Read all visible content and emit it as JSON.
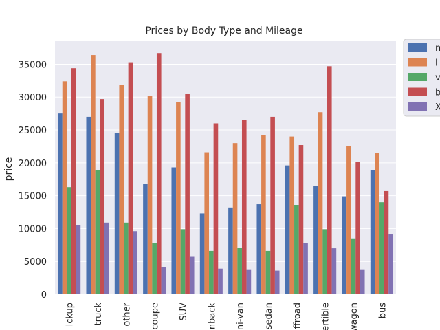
{
  "chart_data": {
    "type": "bar",
    "title": "Prices by Body Type and Mileage",
    "xlabel": "",
    "ylabel": "price",
    "ylim": [
      0,
      38500
    ],
    "yticks": [
      0,
      5000,
      10000,
      15000,
      20000,
      25000,
      30000,
      35000
    ],
    "grid": true,
    "legend_position": "outside right, top",
    "categories": [
      "pickup",
      "truck",
      "other",
      "coupe",
      "SUV",
      "hatchback",
      "mini-van",
      "sedan",
      "offroad",
      "convertible",
      "wagon",
      "bus"
    ],
    "category_labels_visible": [
      "ickup",
      "truck",
      "other",
      "coupe",
      "SUV",
      "nback",
      "ni-van",
      "sedan",
      "ffroad",
      "ertible",
      "wagon",
      "bus"
    ],
    "series": [
      {
        "name": "",
        "legend_label_visible": "n",
        "color": "#4c72b0",
        "values": [
          27500,
          27000,
          24500,
          16800,
          19300,
          12300,
          13200,
          13700,
          19600,
          16500,
          14900,
          18900
        ]
      },
      {
        "name": "",
        "legend_label_visible": "l",
        "color": "#dd8452",
        "values": [
          32400,
          36400,
          31900,
          30200,
          29200,
          21600,
          23000,
          24200,
          24000,
          27700,
          22500,
          21500
        ]
      },
      {
        "name": "",
        "legend_label_visible": "v",
        "color": "#55a868",
        "values": [
          16300,
          18900,
          10900,
          7800,
          9900,
          6600,
          7100,
          6600,
          13600,
          9900,
          8500,
          14000
        ]
      },
      {
        "name": "",
        "legend_label_visible": "b",
        "color": "#c44e52",
        "values": [
          34400,
          29700,
          35300,
          36700,
          30500,
          26000,
          26500,
          27000,
          22700,
          34700,
          20100,
          15700
        ]
      },
      {
        "name": "",
        "legend_label_visible": "X",
        "color": "#8172b3",
        "values": [
          10500,
          10900,
          9600,
          4100,
          5700,
          3900,
          3800,
          3600,
          7800,
          7000,
          3800,
          9100
        ]
      }
    ]
  }
}
